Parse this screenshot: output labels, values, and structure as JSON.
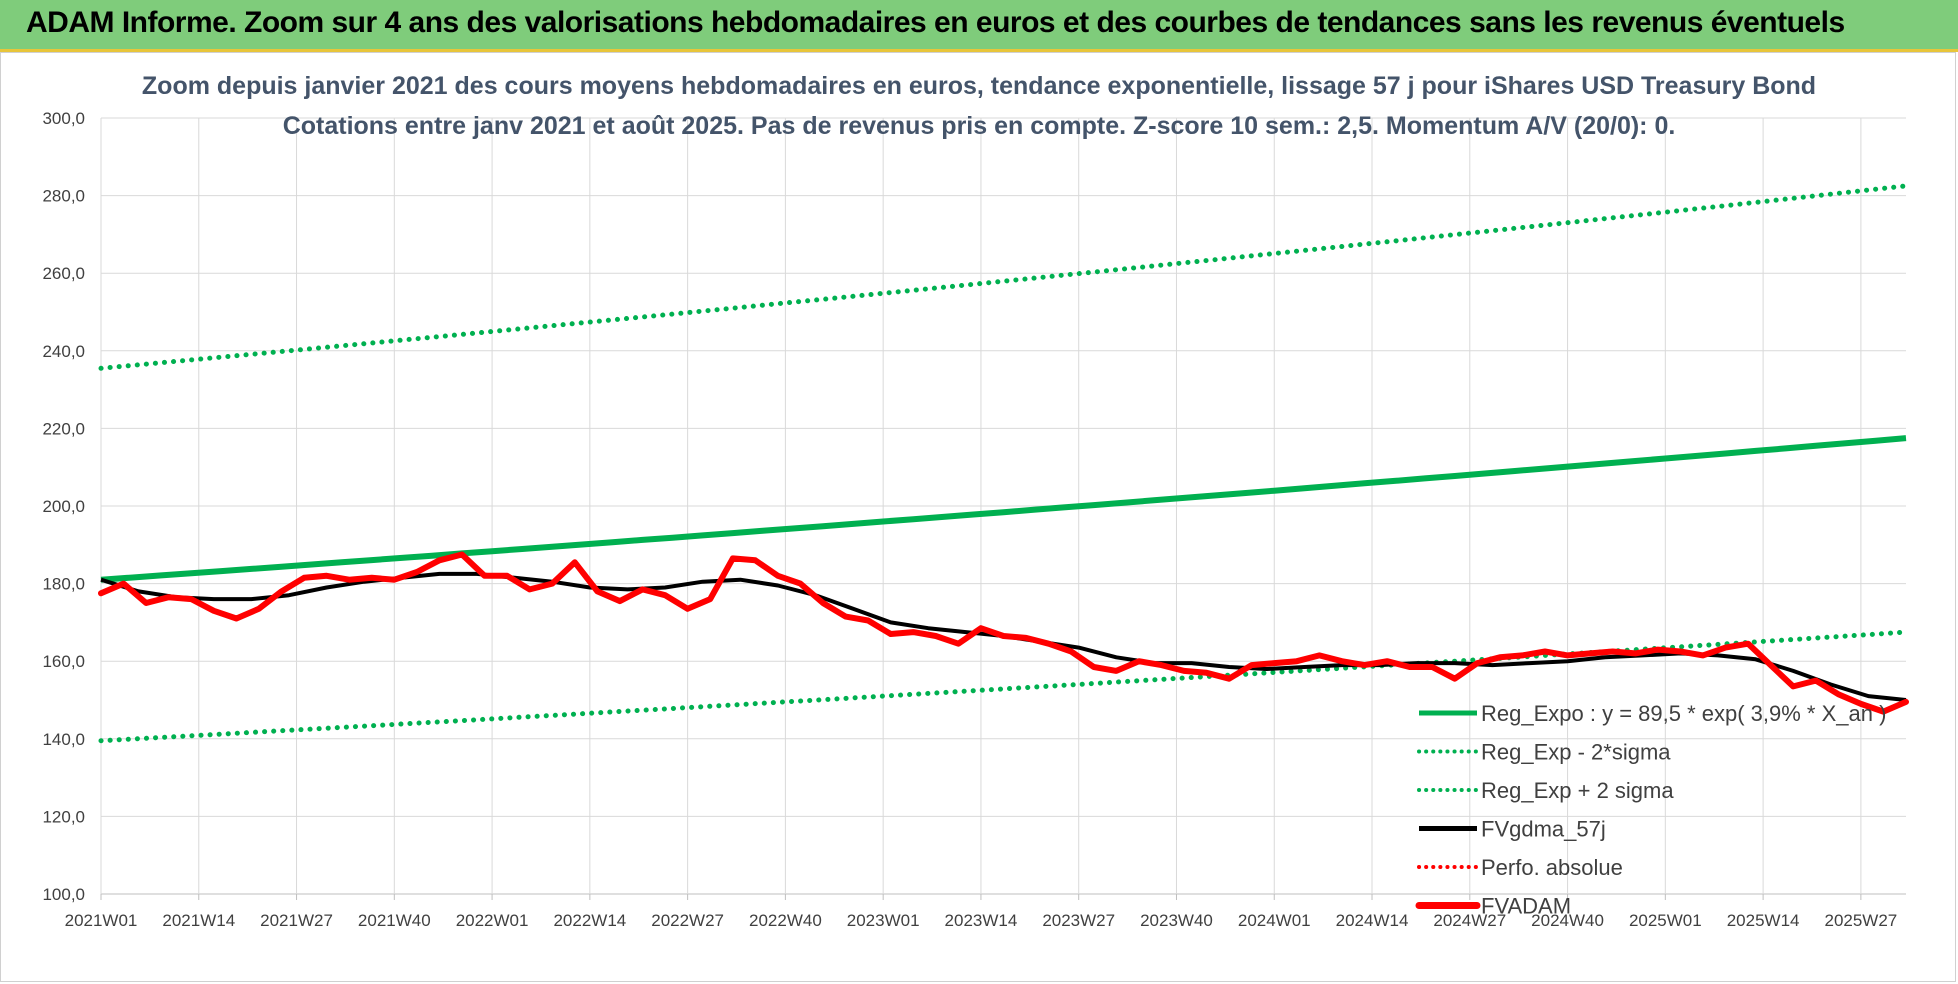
{
  "banner": {
    "title": "ADAM Informe. Zoom sur 4 ans des valorisations hebdomadaires en euros et des courbes de tendances sans les revenus éventuels"
  },
  "chart_data": {
    "type": "line",
    "title": "Zoom depuis janvier 2021 des cours moyens hebdomadaires en euros, tendance exponentielle, lissage 57 j pour iShares USD Treasury Bond",
    "subtitle": "Cotations entre janv 2021 et août 2025. Pas de revenus pris en compte. Z-score 10 sem.: 2,5. Momentum A/V (20/0): 0.",
    "xlabel": "",
    "ylabel": "",
    "ylim": [
      100,
      300
    ],
    "y_ticks": [
      "100,0",
      "120,0",
      "140,0",
      "160,0",
      "180,0",
      "200,0",
      "220,0",
      "240,0",
      "260,0",
      "280,0",
      "300,0"
    ],
    "x_ticks": [
      "2021W01",
      "2021W14",
      "2021W27",
      "2021W40",
      "2022W01",
      "2022W14",
      "2022W27",
      "2022W40",
      "2023W01",
      "2023W14",
      "2023W27",
      "2023W40",
      "2024W01",
      "2024W14",
      "2024W27",
      "2024W40",
      "2025W01",
      "2025W14",
      "2025W27"
    ],
    "x_range_weeks": [
      0,
      240
    ],
    "grid": true,
    "legend_position": "lower-right",
    "series": [
      {
        "name": "Reg_Expo : y = 89,5 * exp( 3,9% * X_an )",
        "color": "#00b050",
        "style": "solid",
        "x": [
          0,
          240
        ],
        "values": [
          181.0,
          217.5
        ],
        "curve": "exponential"
      },
      {
        "name": "Reg_Exp - 2*sigma",
        "color": "#00b050",
        "style": "dotted",
        "x": [
          0,
          240
        ],
        "values": [
          139.5,
          167.5
        ],
        "curve": "exponential"
      },
      {
        "name": "Reg_Exp + 2 sigma",
        "color": "#00b050",
        "style": "dotted",
        "x": [
          0,
          240
        ],
        "values": [
          235.5,
          282.5
        ],
        "curve": "exponential"
      },
      {
        "name": "FVgdma_57j",
        "color": "#000000",
        "style": "solid",
        "x": [
          0,
          5,
          10,
          15,
          20,
          25,
          30,
          35,
          40,
          45,
          50,
          55,
          60,
          65,
          70,
          75,
          80,
          85,
          90,
          95,
          100,
          105,
          110,
          115,
          120,
          125,
          130,
          135,
          140,
          145,
          150,
          155,
          160,
          165,
          170,
          175,
          180,
          185,
          190,
          195,
          200,
          205,
          210,
          215,
          220,
          225,
          230,
          235,
          240
        ],
        "values": [
          181,
          178,
          176.5,
          176,
          176,
          177,
          179,
          180.5,
          181.5,
          182.5,
          182.5,
          181.5,
          180.5,
          179,
          178.5,
          179,
          180.5,
          181,
          179.5,
          177,
          173.5,
          170,
          168.5,
          167.5,
          166.5,
          165,
          163.5,
          161,
          159.5,
          159.5,
          158.5,
          158,
          158.5,
          159,
          159,
          159.5,
          159.5,
          159,
          159.5,
          160,
          161,
          161.5,
          162,
          161.5,
          160.5,
          157.5,
          154,
          151,
          150
        ]
      },
      {
        "name": "Perfo. absolue",
        "color": "#ff0000",
        "style": "dotted",
        "x": [],
        "values": []
      },
      {
        "name": "FVADAM",
        "color": "#ff0000",
        "style": "solid-thick",
        "x": [
          0,
          3,
          6,
          9,
          12,
          15,
          18,
          21,
          24,
          27,
          30,
          33,
          36,
          39,
          42,
          45,
          48,
          51,
          54,
          57,
          60,
          63,
          66,
          69,
          72,
          75,
          78,
          81,
          84,
          87,
          90,
          93,
          96,
          99,
          102,
          105,
          108,
          111,
          114,
          117,
          120,
          123,
          126,
          129,
          132,
          135,
          138,
          141,
          144,
          147,
          150,
          153,
          156,
          159,
          162,
          165,
          168,
          171,
          174,
          177,
          180,
          183,
          186,
          189,
          192,
          195,
          198,
          201,
          204,
          207,
          210,
          213,
          216,
          219,
          222,
          225,
          228,
          231,
          234,
          237,
          240
        ],
        "values": [
          177.5,
          180,
          175,
          176.5,
          176,
          173,
          171,
          173.5,
          178,
          181.5,
          182,
          181,
          181.5,
          181,
          183,
          186,
          187.5,
          182,
          182,
          178.5,
          180,
          185.5,
          178,
          175.5,
          178.5,
          177,
          173.5,
          176,
          186.5,
          186,
          182,
          180,
          175,
          171.5,
          170.5,
          167,
          167.5,
          166.5,
          164.5,
          168.5,
          166.5,
          166,
          164.5,
          162.5,
          158.5,
          157.5,
          160,
          159,
          157.5,
          157,
          155.5,
          159,
          159.5,
          160,
          161.5,
          160,
          159,
          160,
          158.5,
          158.5,
          155.5,
          159.5,
          161,
          161.5,
          162.5,
          161.5,
          162,
          162.5,
          162,
          163,
          162.5,
          161.5,
          163.5,
          164.5,
          159,
          153.5,
          155,
          151.5,
          149,
          147,
          149.5
        ]
      }
    ]
  }
}
